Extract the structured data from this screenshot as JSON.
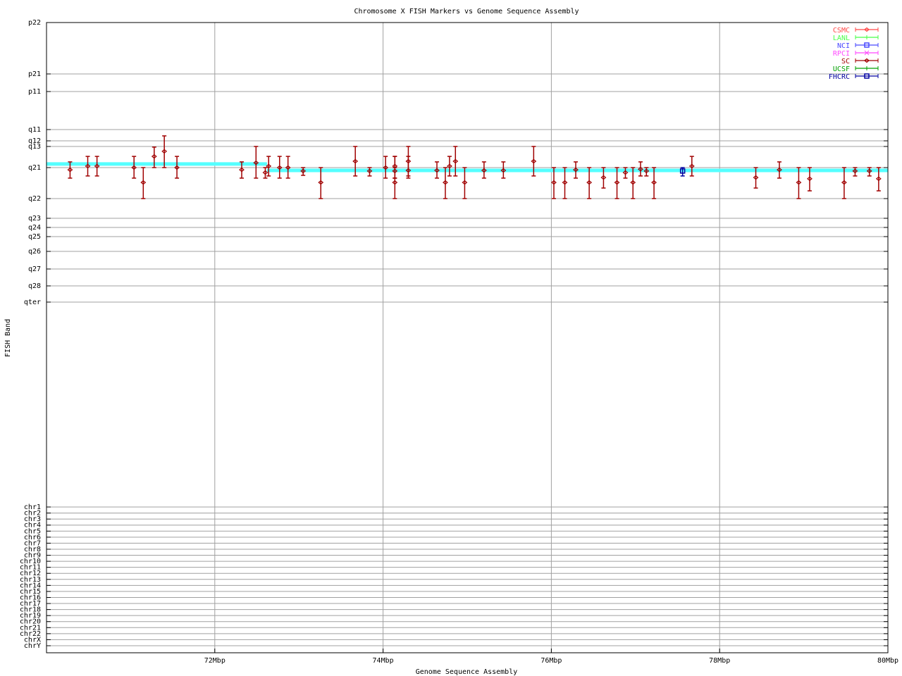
{
  "chart_data": {
    "type": "scatter",
    "title": "Chromosome X FISH Markers vs Genome Sequence Assembly",
    "xlabel": "Genome Sequence Assembly",
    "ylabel": "FISH Band",
    "xlim": [
      70,
      80
    ],
    "x_ticks": [
      {
        "value": 72,
        "label": "72Mbp"
      },
      {
        "value": 74,
        "label": "74Mbp"
      },
      {
        "value": 76,
        "label": "76Mbp"
      },
      {
        "value": 78,
        "label": "78Mbp"
      },
      {
        "value": 80,
        "label": "80Mbp"
      }
    ],
    "y_ticks": [
      "p22",
      "p21",
      "p11",
      "q11",
      "q12",
      "q13",
      "q21",
      "q22",
      "q23",
      "q24",
      "q25",
      "q26",
      "q27",
      "q28",
      "qter",
      "chr1",
      "chr2",
      "chr3",
      "chr4",
      "chr5",
      "chr6",
      "chr7",
      "chr8",
      "chr9",
      "chr10",
      "chr11",
      "chr12",
      "chr13",
      "chr14",
      "chr15",
      "chr16",
      "chr17",
      "chr18",
      "chr19",
      "chr20",
      "chr21",
      "chr22",
      "chrX",
      "chrY"
    ],
    "y_units": "band index (0 = p22, fractional values lie between bands)",
    "grid": true,
    "legend_position": "top-right",
    "legend": [
      {
        "name": "CSMC",
        "color": "#ff4848",
        "marker": "diamond"
      },
      {
        "name": "LANL",
        "color": "#48ff48",
        "marker": "plus"
      },
      {
        "name": "NCI",
        "color": "#4848ff",
        "marker": "square"
      },
      {
        "name": "RPCI",
        "color": "#ff48ff",
        "marker": "cross"
      },
      {
        "name": "SC",
        "color": "#a00000",
        "marker": "diamond"
      },
      {
        "name": "UCSF",
        "color": "#00a000",
        "marker": "plus"
      },
      {
        "name": "FHCRC",
        "color": "#0000a0",
        "marker": "square"
      }
    ],
    "assembly_line": {
      "color": "#55ffff",
      "segments": [
        {
          "x": [
            70,
            72.62
          ],
          "y": 5.83
        },
        {
          "x": [
            72.62,
            80
          ],
          "y": 6.09
        }
      ]
    },
    "series": [
      {
        "name": "SC",
        "points": [
          [
            70.28,
            6.07,
            5.73,
            6.34
          ],
          [
            70.49,
            5.93,
            5.47,
            6.27
          ],
          [
            70.6,
            5.93,
            5.47,
            6.27
          ],
          [
            71.04,
            6.0,
            5.47,
            6.34
          ],
          [
            71.15,
            6.48,
            6.0,
            7.0
          ],
          [
            71.28,
            5.47,
            5.03,
            6.0
          ],
          [
            71.4,
            5.23,
            3.56,
            6.0
          ],
          [
            71.55,
            6.0,
            5.47,
            6.34
          ],
          [
            72.32,
            6.07,
            5.73,
            6.34
          ],
          [
            72.49,
            5.77,
            5.0,
            6.34
          ],
          [
            72.6,
            6.16,
            6.0,
            6.34
          ],
          [
            72.64,
            5.93,
            5.47,
            6.27
          ],
          [
            72.77,
            6.0,
            5.47,
            6.34
          ],
          [
            72.87,
            6.0,
            5.47,
            6.34
          ],
          [
            73.05,
            6.11,
            6.0,
            6.25
          ],
          [
            73.26,
            6.48,
            6.0,
            7.0
          ],
          [
            73.67,
            5.7,
            5.0,
            6.27
          ],
          [
            73.84,
            6.11,
            6.0,
            6.27
          ],
          [
            74.03,
            6.0,
            5.47,
            6.34
          ],
          [
            74.14,
            5.93,
            5.47,
            6.34
          ],
          [
            74.14,
            6.11,
            5.47,
            6.34
          ],
          [
            74.14,
            6.48,
            6.0,
            7.0
          ],
          [
            74.3,
            5.7,
            5.0,
            6.27
          ],
          [
            74.3,
            6.09,
            5.47,
            6.34
          ],
          [
            74.64,
            6.09,
            5.73,
            6.34
          ],
          [
            74.74,
            6.48,
            6.0,
            7.0
          ],
          [
            74.79,
            5.93,
            5.47,
            6.27
          ],
          [
            74.86,
            5.7,
            5.0,
            6.27
          ],
          [
            74.97,
            6.48,
            6.0,
            7.0
          ],
          [
            75.2,
            6.09,
            5.73,
            6.34
          ],
          [
            75.43,
            6.09,
            5.73,
            6.34
          ],
          [
            75.79,
            5.7,
            5.0,
            6.27
          ],
          [
            76.03,
            6.48,
            6.0,
            7.0
          ],
          [
            76.16,
            6.48,
            6.0,
            7.0
          ],
          [
            76.29,
            6.07,
            5.73,
            6.34
          ],
          [
            76.45,
            6.48,
            6.0,
            7.0
          ],
          [
            76.62,
            6.32,
            6.0,
            6.66
          ],
          [
            76.78,
            6.48,
            6.0,
            7.0
          ],
          [
            76.88,
            6.16,
            6.0,
            6.34
          ],
          [
            76.97,
            6.48,
            6.0,
            7.0
          ],
          [
            77.06,
            6.05,
            5.73,
            6.27
          ],
          [
            77.13,
            6.11,
            6.0,
            6.27
          ],
          [
            77.22,
            6.48,
            6.0,
            7.0
          ],
          [
            77.67,
            5.93,
            5.47,
            6.27
          ],
          [
            78.43,
            6.32,
            6.0,
            6.66
          ],
          [
            78.71,
            6.07,
            5.73,
            6.34
          ],
          [
            78.94,
            6.48,
            6.0,
            7.0
          ],
          [
            79.07,
            6.36,
            6.0,
            6.75
          ],
          [
            79.48,
            6.48,
            6.0,
            7.0
          ],
          [
            79.61,
            6.11,
            6.0,
            6.27
          ],
          [
            79.78,
            6.11,
            6.0,
            6.27
          ],
          [
            79.89,
            6.36,
            6.0,
            6.75
          ]
        ]
      },
      {
        "name": "FHCRC",
        "points": [
          [
            77.56,
            6.11,
            6.0,
            6.27
          ]
        ]
      }
    ]
  }
}
